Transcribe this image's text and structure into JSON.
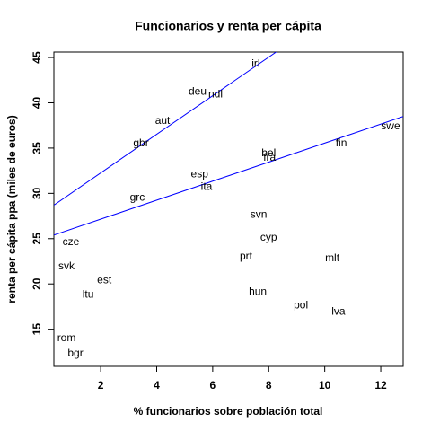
{
  "chart_data": {
    "type": "scatter",
    "title": "Funcionarios y renta per cápita",
    "x_label": "% funcionarios sobre población total",
    "y_label": "renta per cápita ppa (miles de euros)",
    "xlim": [
      0.33,
      12.8
    ],
    "ylim": [
      10.9,
      45.6
    ],
    "xticks": [
      2,
      4,
      6,
      8,
      10,
      12
    ],
    "yticks": [
      15,
      20,
      25,
      30,
      35,
      40,
      45
    ],
    "labels": [
      "irl",
      "deu",
      "ndl",
      "aut",
      "gbr",
      "swe",
      "fin",
      "bel",
      "fra",
      "esp",
      "ita",
      "grc",
      "svn",
      "cyp",
      "cze",
      "prt",
      "mlt",
      "svk",
      "est",
      "hun",
      "ltu",
      "pol",
      "lva",
      "rom",
      "bgr"
    ],
    "x": [
      7.54,
      5.46,
      6.1,
      4.21,
      3.44,
      12.35,
      10.59,
      8.0,
      8.03,
      5.53,
      5.78,
      3.31,
      7.64,
      8.0,
      0.94,
      7.19,
      10.27,
      0.78,
      2.13,
      7.61,
      1.55,
      9.15,
      10.49,
      0.78,
      1.1
    ],
    "values": [
      44.3,
      41.2,
      40.9,
      38.0,
      35.5,
      37.4,
      35.5,
      34.4,
      33.9,
      32.1,
      30.7,
      29.5,
      27.6,
      25.1,
      24.6,
      23.0,
      22.8,
      21.9,
      20.4,
      19.1,
      18.8,
      17.6,
      16.9,
      14.0,
      12.3
    ],
    "lines": [
      {
        "intercept": 28.0,
        "slope": 2.13,
        "color": "blue"
      },
      {
        "intercept": 25.05,
        "slope": 1.05,
        "color": "blue"
      }
    ]
  }
}
